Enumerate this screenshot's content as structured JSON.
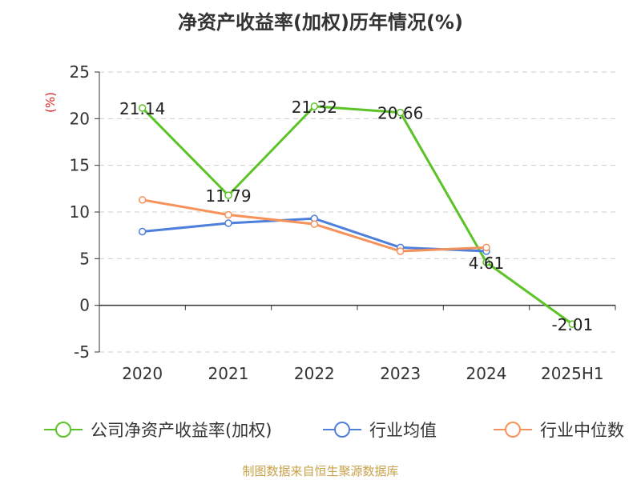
{
  "chart_data": {
    "type": "line",
    "title": "净资产收益率(加权)历年情况(%)",
    "ylabel": "(%)",
    "xlabel": "",
    "categories": [
      "2020",
      "2021",
      "2022",
      "2023",
      "2024",
      "2025H1"
    ],
    "ylim": [
      -5,
      25
    ],
    "yticks": [
      -5,
      0,
      5,
      10,
      15,
      20,
      25
    ],
    "grid": true,
    "legend_position": "bottom",
    "series": [
      {
        "name": "公司净资产收益率(加权)",
        "color": "#5cc327",
        "values": [
          21.14,
          11.79,
          21.32,
          20.66,
          4.61,
          -2.01
        ],
        "labels": [
          "21.14",
          "11.79",
          "21.32",
          "20.66",
          "4.61",
          "-2.01"
        ]
      },
      {
        "name": "行业均值",
        "color": "#4f7fdc",
        "values": [
          7.9,
          8.8,
          9.3,
          6.2,
          5.8,
          null
        ]
      },
      {
        "name": "行业中位数",
        "color": "#f7915a",
        "values": [
          11.3,
          9.7,
          8.7,
          5.8,
          6.2,
          null
        ]
      }
    ]
  },
  "footer": {
    "source": "制图数据来自恒生聚源数据库"
  }
}
